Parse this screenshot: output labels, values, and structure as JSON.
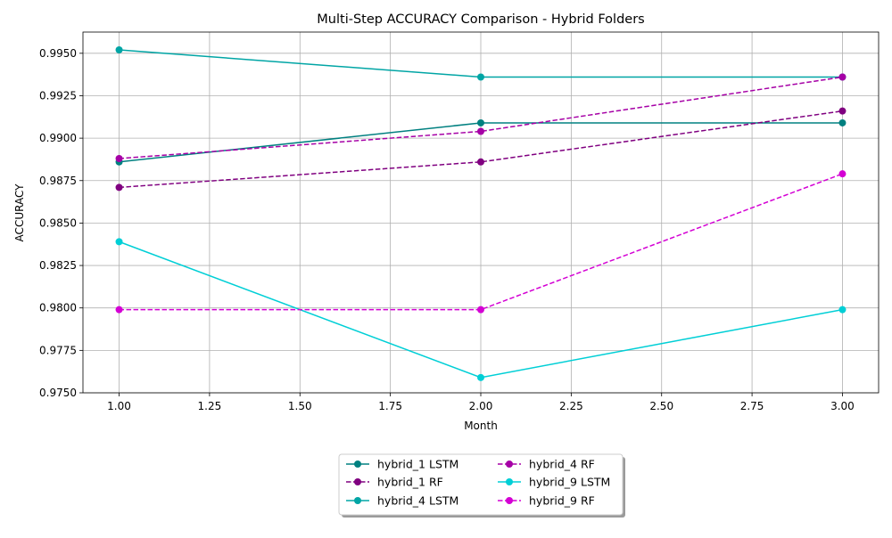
{
  "chart_data": {
    "type": "line",
    "title": "Multi-Step ACCURACY Comparison - Hybrid Folders",
    "xlabel": "Month",
    "ylabel": "ACCURACY",
    "x": [
      1.0,
      2.0,
      3.0
    ],
    "xlim": [
      0.9,
      3.1
    ],
    "ylim": [
      0.975,
      0.99625
    ],
    "xticks": [
      1.0,
      1.25,
      1.5,
      1.75,
      2.0,
      2.25,
      2.5,
      2.75,
      3.0
    ],
    "xtick_labels": [
      "1.00",
      "1.25",
      "1.50",
      "1.75",
      "2.00",
      "2.25",
      "2.50",
      "2.75",
      "3.00"
    ],
    "yticks": [
      0.975,
      0.9775,
      0.98,
      0.9825,
      0.985,
      0.9875,
      0.99,
      0.9925,
      0.995
    ],
    "ytick_labels": [
      "0.9750",
      "0.9775",
      "0.9800",
      "0.9825",
      "0.9850",
      "0.9875",
      "0.9900",
      "0.9925",
      "0.9950"
    ],
    "grid": true,
    "legend_position": "bottom-center",
    "series": [
      {
        "name": "hybrid_1 LSTM",
        "values": [
          0.9886,
          0.9909,
          0.9909
        ],
        "color": "#008080",
        "dashed": false
      },
      {
        "name": "hybrid_1 RF",
        "values": [
          0.9871,
          0.9886,
          0.9916
        ],
        "color": "#800080",
        "dashed": true
      },
      {
        "name": "hybrid_4 LSTM",
        "values": [
          0.9952,
          0.9936,
          0.9936
        ],
        "color": "#00a5a5",
        "dashed": false
      },
      {
        "name": "hybrid_4 RF",
        "values": [
          0.9888,
          0.9904,
          0.9936
        ],
        "color": "#a600a6",
        "dashed": true
      },
      {
        "name": "hybrid_9 LSTM",
        "values": [
          0.9839,
          0.9759,
          0.9799
        ],
        "color": "#00cfd6",
        "dashed": false
      },
      {
        "name": "hybrid_9 RF",
        "values": [
          0.9799,
          0.9799,
          0.9879
        ],
        "color": "#d400d4",
        "dashed": true
      }
    ]
  }
}
